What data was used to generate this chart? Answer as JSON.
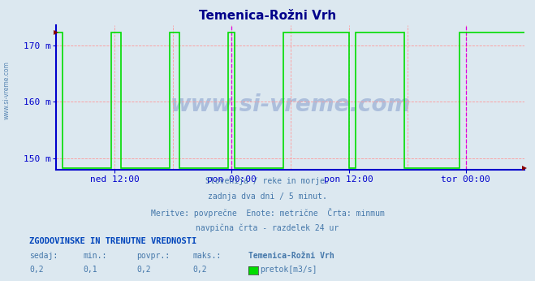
{
  "title": "Temenica-Rožni Vrh",
  "title_color": "#00008B",
  "bg_color": "#dce8f0",
  "plot_bg_color": "#dce8f0",
  "ylim": [
    148.0,
    173.5
  ],
  "yticks": [
    150,
    160,
    170
  ],
  "ytick_labels": [
    "150 m",
    "160 m",
    "170 m"
  ],
  "xlim": [
    0,
    576
  ],
  "xtick_positions": [
    72,
    216,
    360,
    504
  ],
  "xtick_labels": [
    "ned 12:00",
    "pon 00:00",
    "pon 12:00",
    "tor 00:00"
  ],
  "vlines_red": [
    72,
    144,
    216,
    288,
    360,
    432,
    504
  ],
  "vlines_magenta": [
    216,
    504
  ],
  "line_color": "#00DD00",
  "line_width": 1.2,
  "axis_color": "#0000CC",
  "grid_color": "#FF9999",
  "grid_lw": 0.6,
  "subtitle_lines": [
    "Slovenija / reke in morje.",
    "zadnja dva dni / 5 minut.",
    "Meritve: povprečne  Enote: metrične  Črta: minmum",
    "navpična črta - razdelek 24 ur"
  ],
  "footer_bold": "ZGODOVINSKE IN TRENUTNE VREDNOSTI",
  "footer_labels": [
    "sedaj:",
    "min.:",
    "povpr.:",
    "maks.:",
    "Temenica-Rožni Vrh"
  ],
  "footer_values": [
    "0,2",
    "0,1",
    "0,2",
    "0,2"
  ],
  "legend_label": "pretok[m3/s]",
  "legend_color": "#00DD00",
  "text_color": "#4477aa",
  "footer_label_color": "#4477aa",
  "footer_bold_color": "#0044bb",
  "watermark": "www.si-vreme.com",
  "watermark_color": "#3355aa",
  "sidevmark": "www.si-vreme.com",
  "sidevmark_color": "#4477aa",
  "high_val": 172.3,
  "low_val": 148.3,
  "data_x": [
    0,
    8,
    8,
    68,
    68,
    80,
    80,
    140,
    140,
    152,
    152,
    212,
    212,
    220,
    220,
    280,
    280,
    360,
    360,
    368,
    368,
    428,
    428,
    496,
    496,
    576
  ],
  "data_y": [
    172.3,
    172.3,
    148.3,
    148.3,
    172.3,
    172.3,
    148.3,
    148.3,
    172.3,
    172.3,
    148.3,
    148.3,
    172.3,
    172.3,
    148.3,
    148.3,
    172.3,
    172.3,
    148.3,
    148.3,
    172.3,
    172.3,
    148.3,
    148.3,
    172.3,
    172.3
  ]
}
